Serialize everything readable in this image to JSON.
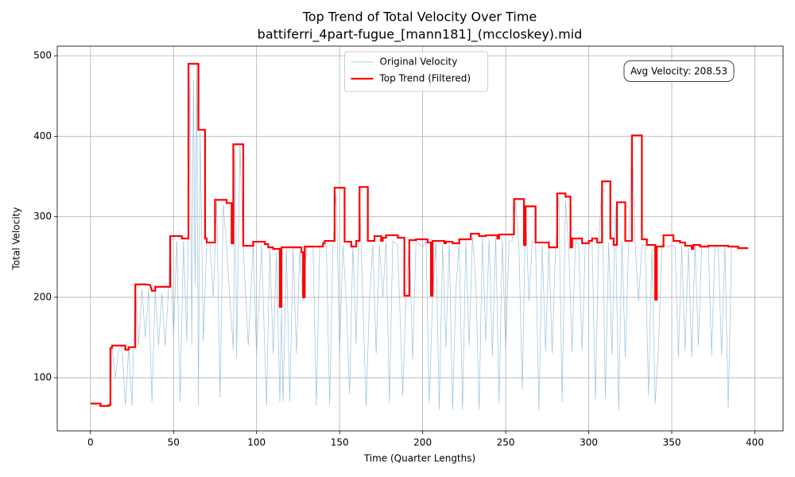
{
  "chart_data": {
    "type": "line",
    "title": "Top Trend of Total Velocity Over Time",
    "subtitle": "battiferri_4part-fugue_[mann181]_(mccloskey).mid",
    "x_label": "Time (Quarter Lengths)",
    "y_label": "Total Velocity",
    "annotation": "Avg Velocity: 208.53",
    "xlim": [
      -20,
      417
    ],
    "ylim": [
      34,
      512
    ],
    "xticks": [
      0,
      50,
      100,
      150,
      200,
      250,
      300,
      350,
      400
    ],
    "yticks": [
      100,
      200,
      300,
      400,
      500
    ],
    "grid": true,
    "legend": "upper center",
    "series": [
      {
        "name": "Original Velocity",
        "color": "#8fbbd9",
        "x": [
          0,
          5,
          10,
          12,
          13,
          15,
          17,
          19,
          21,
          23,
          25,
          27,
          29,
          31,
          33,
          35,
          37,
          39,
          41,
          43,
          45,
          47,
          48,
          50,
          52,
          54,
          56,
          58,
          60,
          61,
          62,
          63,
          64,
          65,
          66,
          68,
          70,
          72,
          74,
          76,
          78,
          80,
          82,
          84,
          86,
          87,
          88,
          90,
          92,
          95,
          98,
          100,
          103,
          106,
          108,
          110,
          112,
          114,
          115,
          116,
          118,
          120,
          122,
          124,
          126,
          128,
          130,
          134,
          136,
          138,
          142,
          144,
          146,
          148,
          150,
          152,
          154,
          156,
          158,
          160,
          162,
          164,
          166,
          168,
          170,
          172,
          174,
          176,
          178,
          180,
          182,
          185,
          188,
          190,
          192,
          194,
          196,
          200,
          202,
          204,
          206,
          208,
          210,
          212,
          214,
          216,
          218,
          220,
          222,
          224,
          226,
          228,
          230,
          232,
          234,
          236,
          238,
          240,
          242,
          244,
          246,
          248,
          250,
          252,
          254,
          256,
          258,
          260,
          262,
          264,
          266,
          268,
          270,
          272,
          274,
          276,
          278,
          280,
          282,
          284,
          286,
          288,
          290,
          292,
          294,
          296,
          298,
          300,
          302,
          304,
          306,
          308,
          310,
          312,
          314,
          316,
          318,
          320,
          322,
          324,
          326,
          328,
          330,
          332,
          334,
          336,
          338,
          340,
          342,
          344,
          346,
          348,
          350,
          352,
          354,
          356,
          358,
          360,
          362,
          364,
          366,
          368,
          370,
          372,
          374,
          376,
          378,
          380,
          382,
          384,
          386,
          388,
          390
        ],
        "values": [
          68,
          65,
          64,
          66,
          137,
          100,
          135,
          140,
          65,
          138,
          65,
          216,
          140,
          210,
          150,
          210,
          70,
          210,
          140,
          205,
          140,
          210,
          270,
          150,
          270,
          70,
          270,
          145,
          480,
          140,
          470,
          215,
          490,
          65,
          405,
          145,
          270,
          265,
          200,
          320,
          75,
          315,
          260,
          195,
          135,
          385,
          125,
          390,
          260,
          140,
          265,
          127,
          265,
          65,
          262,
          130,
          255,
          70,
          185,
          70,
          260,
          70,
          262,
          130,
          258,
          195,
          262,
          262,
          65,
          262,
          265,
          65,
          265,
          330,
          130,
          265,
          195,
          80,
          265,
          142,
          330,
          195,
          65,
          200,
          265,
          130,
          265,
          200,
          270,
          68,
          270,
          265,
          78,
          200,
          270,
          123,
          270,
          262,
          270,
          68,
          200,
          270,
          60,
          265,
          137,
          268,
          60,
          210,
          268,
          60,
          270,
          140,
          275,
          220,
          60,
          275,
          145,
          272,
          127,
          275,
          68,
          272,
          133,
          270,
          270,
          320,
          260,
          85,
          310,
          195,
          270,
          268,
          60,
          265,
          133,
          262,
          130,
          262,
          325,
          70,
          320,
          260,
          132,
          270,
          265,
          133,
          270,
          265,
          270,
          73,
          268,
          340,
          75,
          268,
          128,
          313,
          60,
          270,
          125,
          265,
          395,
          265,
          195,
          265,
          265,
          78,
          260,
          68,
          137,
          265,
          265,
          262,
          265,
          262,
          125,
          265,
          133,
          262,
          125,
          265,
          140,
          262,
          262,
          265,
          128,
          265,
          262,
          128,
          265,
          62,
          262,
          262,
          260
        ]
      },
      {
        "name": "Top Trend (Filtered)",
        "color": "#ff0000",
        "x": [
          0,
          6,
          6,
          11,
          11,
          12,
          12,
          13,
          13,
          21,
          21,
          23,
          23,
          27,
          27,
          34,
          36,
          37,
          39,
          39,
          48,
          48,
          55,
          55,
          59,
          59,
          65,
          65,
          69,
          69,
          70,
          70,
          75,
          75,
          82,
          82,
          85,
          85,
          86,
          86,
          92,
          92,
          98,
          98,
          105,
          105,
          107,
          107,
          110,
          110,
          114,
          114,
          115,
          115,
          127,
          127,
          128,
          128,
          129,
          129,
          140,
          140,
          141,
          141,
          147,
          147,
          153,
          153,
          157,
          157,
          160,
          160,
          162,
          162,
          167,
          167,
          171,
          171,
          175,
          175,
          176,
          176,
          178,
          178,
          185,
          185,
          189,
          189,
          192,
          192,
          196,
          196,
          203,
          203,
          205,
          205,
          206,
          206,
          213,
          213,
          214,
          214,
          218,
          218,
          222,
          222,
          229,
          229,
          234,
          234,
          238,
          238,
          245,
          245,
          246,
          246,
          255,
          255,
          261,
          261,
          262,
          262,
          268,
          268,
          276,
          276,
          281,
          281,
          286,
          286,
          289,
          289,
          290,
          290,
          296,
          296,
          300,
          300,
          302,
          302,
          305,
          305,
          308,
          308,
          313,
          313,
          315,
          315,
          317,
          317,
          322,
          322,
          326,
          326,
          332,
          332,
          335,
          335,
          340,
          340,
          341,
          341,
          345,
          345,
          351,
          351,
          355,
          355,
          358,
          358,
          362,
          362,
          363,
          363,
          367,
          367,
          372,
          372,
          384,
          384,
          390,
          390,
          396
        ],
        "values": [
          68,
          68,
          65,
          65,
          66,
          66,
          137,
          137,
          140,
          140,
          135,
          135,
          138,
          138,
          216,
          216,
          215,
          208,
          208,
          213,
          213,
          276,
          276,
          273,
          273,
          490,
          490,
          408,
          408,
          273,
          273,
          268,
          268,
          321,
          321,
          317,
          317,
          267,
          267,
          390,
          390,
          264,
          264,
          269,
          269,
          266,
          266,
          262,
          262,
          260,
          260,
          188,
          188,
          262,
          262,
          256,
          256,
          200,
          200,
          263,
          263,
          267,
          267,
          270,
          270,
          336,
          336,
          269,
          269,
          263,
          263,
          270,
          270,
          337,
          337,
          270,
          270,
          276,
          276,
          270,
          270,
          274,
          274,
          277,
          277,
          274,
          274,
          202,
          202,
          271,
          271,
          272,
          272,
          268,
          268,
          202,
          202,
          270,
          270,
          267,
          267,
          269,
          269,
          267,
          267,
          272,
          272,
          279,
          279,
          276,
          276,
          277,
          277,
          273,
          273,
          278,
          278,
          322,
          322,
          265,
          265,
          313,
          313,
          268,
          268,
          262,
          262,
          329,
          329,
          325,
          325,
          262,
          262,
          273,
          273,
          267,
          267,
          270,
          270,
          273,
          273,
          268,
          268,
          344,
          344,
          273,
          273,
          265,
          265,
          318,
          318,
          270,
          270,
          401,
          401,
          272,
          272,
          265,
          265,
          197,
          197,
          263,
          263,
          277,
          277,
          270,
          270,
          268,
          268,
          264,
          264,
          260,
          260,
          265,
          265,
          263,
          263,
          264,
          264,
          263,
          263,
          261,
          261
        ]
      }
    ]
  }
}
